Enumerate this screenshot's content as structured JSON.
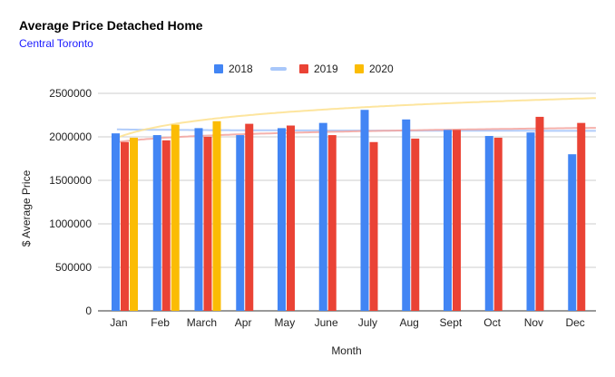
{
  "title": "Average Price Detached Home",
  "subtitle": "Central Toronto",
  "chart_data": {
    "type": "bar",
    "title": "Average Price Detached Home",
    "subtitle": "Central Toronto",
    "xlabel": "Month",
    "ylabel": "$ Average Price",
    "ylim": [
      0,
      2500000
    ],
    "yticks": [
      "0",
      "500000",
      "1000000",
      "1500000",
      "2000000",
      "2500000"
    ],
    "grid": true,
    "legend_position": "top",
    "categories": [
      "Jan",
      "Feb",
      "March",
      "Apr",
      "May",
      "June",
      "July",
      "Aug",
      "Sept",
      "Oct",
      "Nov",
      "Dec"
    ],
    "series": [
      {
        "name": "2018",
        "color": "#4285f4",
        "values": [
          2040000,
          2020000,
          2100000,
          2020000,
          2100000,
          2160000,
          2310000,
          2200000,
          2080000,
          2010000,
          2050000,
          1800000
        ]
      },
      {
        "name": "2019",
        "color": "#ea4335",
        "values": [
          1940000,
          1960000,
          2000000,
          2150000,
          2130000,
          2020000,
          1940000,
          1980000,
          2080000,
          1990000,
          2230000,
          2160000
        ]
      },
      {
        "name": "2020",
        "color": "#fbbc04",
        "values": [
          1990000,
          2140000,
          2180000,
          null,
          null,
          null,
          null,
          null,
          null,
          null,
          null,
          null
        ]
      }
    ],
    "legend": [
      {
        "label": "2018",
        "kind": "bar",
        "color": "#4285f4"
      },
      {
        "label": "",
        "kind": "trendline",
        "color": "#a8c7fa"
      },
      {
        "label": "2019",
        "kind": "bar",
        "color": "#ea4335"
      },
      {
        "label": "2020",
        "kind": "bar",
        "color": "#fbbc04"
      }
    ],
    "trendlines": [
      {
        "series": "2018",
        "color": "#a8c7fa"
      },
      {
        "series": "2019",
        "color": "#f4a9a3"
      },
      {
        "series": "2020",
        "color": "#fde293"
      }
    ]
  }
}
